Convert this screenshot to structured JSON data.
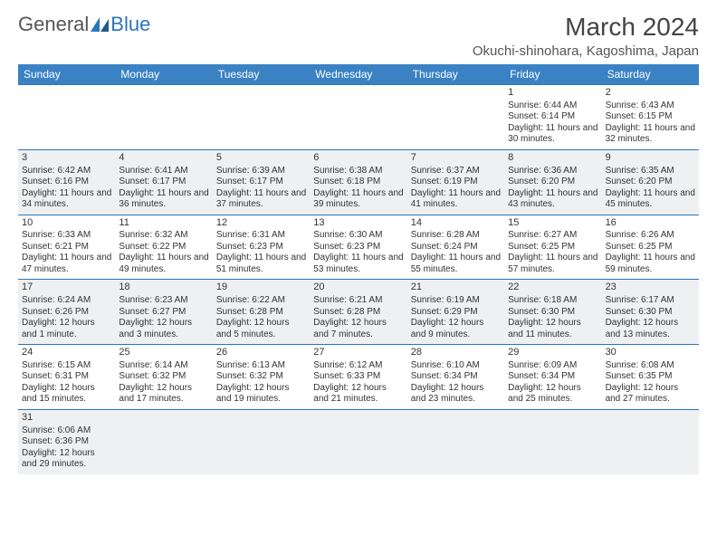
{
  "logo": {
    "part1": "General",
    "part2": "Blue"
  },
  "title": "March 2024",
  "location": "Okuchi-shinohara, Kagoshima, Japan",
  "colors": {
    "header_bg": "#3a82c4",
    "header_fg": "#ffffff",
    "border": "#2b77b8",
    "shade": "#eef0f2",
    "text": "#333333",
    "logo_general": "#555555",
    "logo_blue": "#2b77b8"
  },
  "day_headers": [
    "Sunday",
    "Monday",
    "Tuesday",
    "Wednesday",
    "Thursday",
    "Friday",
    "Saturday"
  ],
  "leading_blanks": 5,
  "days": [
    {
      "n": "1",
      "sunrise": "6:44 AM",
      "sunset": "6:14 PM",
      "daylight": "11 hours and 30 minutes."
    },
    {
      "n": "2",
      "sunrise": "6:43 AM",
      "sunset": "6:15 PM",
      "daylight": "11 hours and 32 minutes."
    },
    {
      "n": "3",
      "sunrise": "6:42 AM",
      "sunset": "6:16 PM",
      "daylight": "11 hours and 34 minutes."
    },
    {
      "n": "4",
      "sunrise": "6:41 AM",
      "sunset": "6:17 PM",
      "daylight": "11 hours and 36 minutes."
    },
    {
      "n": "5",
      "sunrise": "6:39 AM",
      "sunset": "6:17 PM",
      "daylight": "11 hours and 37 minutes."
    },
    {
      "n": "6",
      "sunrise": "6:38 AM",
      "sunset": "6:18 PM",
      "daylight": "11 hours and 39 minutes."
    },
    {
      "n": "7",
      "sunrise": "6:37 AM",
      "sunset": "6:19 PM",
      "daylight": "11 hours and 41 minutes."
    },
    {
      "n": "8",
      "sunrise": "6:36 AM",
      "sunset": "6:20 PM",
      "daylight": "11 hours and 43 minutes."
    },
    {
      "n": "9",
      "sunrise": "6:35 AM",
      "sunset": "6:20 PM",
      "daylight": "11 hours and 45 minutes."
    },
    {
      "n": "10",
      "sunrise": "6:33 AM",
      "sunset": "6:21 PM",
      "daylight": "11 hours and 47 minutes."
    },
    {
      "n": "11",
      "sunrise": "6:32 AM",
      "sunset": "6:22 PM",
      "daylight": "11 hours and 49 minutes."
    },
    {
      "n": "12",
      "sunrise": "6:31 AM",
      "sunset": "6:23 PM",
      "daylight": "11 hours and 51 minutes."
    },
    {
      "n": "13",
      "sunrise": "6:30 AM",
      "sunset": "6:23 PM",
      "daylight": "11 hours and 53 minutes."
    },
    {
      "n": "14",
      "sunrise": "6:28 AM",
      "sunset": "6:24 PM",
      "daylight": "11 hours and 55 minutes."
    },
    {
      "n": "15",
      "sunrise": "6:27 AM",
      "sunset": "6:25 PM",
      "daylight": "11 hours and 57 minutes."
    },
    {
      "n": "16",
      "sunrise": "6:26 AM",
      "sunset": "6:25 PM",
      "daylight": "11 hours and 59 minutes."
    },
    {
      "n": "17",
      "sunrise": "6:24 AM",
      "sunset": "6:26 PM",
      "daylight": "12 hours and 1 minute."
    },
    {
      "n": "18",
      "sunrise": "6:23 AM",
      "sunset": "6:27 PM",
      "daylight": "12 hours and 3 minutes."
    },
    {
      "n": "19",
      "sunrise": "6:22 AM",
      "sunset": "6:28 PM",
      "daylight": "12 hours and 5 minutes."
    },
    {
      "n": "20",
      "sunrise": "6:21 AM",
      "sunset": "6:28 PM",
      "daylight": "12 hours and 7 minutes."
    },
    {
      "n": "21",
      "sunrise": "6:19 AM",
      "sunset": "6:29 PM",
      "daylight": "12 hours and 9 minutes."
    },
    {
      "n": "22",
      "sunrise": "6:18 AM",
      "sunset": "6:30 PM",
      "daylight": "12 hours and 11 minutes."
    },
    {
      "n": "23",
      "sunrise": "6:17 AM",
      "sunset": "6:30 PM",
      "daylight": "12 hours and 13 minutes."
    },
    {
      "n": "24",
      "sunrise": "6:15 AM",
      "sunset": "6:31 PM",
      "daylight": "12 hours and 15 minutes."
    },
    {
      "n": "25",
      "sunrise": "6:14 AM",
      "sunset": "6:32 PM",
      "daylight": "12 hours and 17 minutes."
    },
    {
      "n": "26",
      "sunrise": "6:13 AM",
      "sunset": "6:32 PM",
      "daylight": "12 hours and 19 minutes."
    },
    {
      "n": "27",
      "sunrise": "6:12 AM",
      "sunset": "6:33 PM",
      "daylight": "12 hours and 21 minutes."
    },
    {
      "n": "28",
      "sunrise": "6:10 AM",
      "sunset": "6:34 PM",
      "daylight": "12 hours and 23 minutes."
    },
    {
      "n": "29",
      "sunrise": "6:09 AM",
      "sunset": "6:34 PM",
      "daylight": "12 hours and 25 minutes."
    },
    {
      "n": "30",
      "sunrise": "6:08 AM",
      "sunset": "6:35 PM",
      "daylight": "12 hours and 27 minutes."
    },
    {
      "n": "31",
      "sunrise": "6:06 AM",
      "sunset": "6:36 PM",
      "daylight": "12 hours and 29 minutes."
    }
  ],
  "labels": {
    "sunrise": "Sunrise:",
    "sunset": "Sunset:",
    "daylight": "Daylight:"
  }
}
